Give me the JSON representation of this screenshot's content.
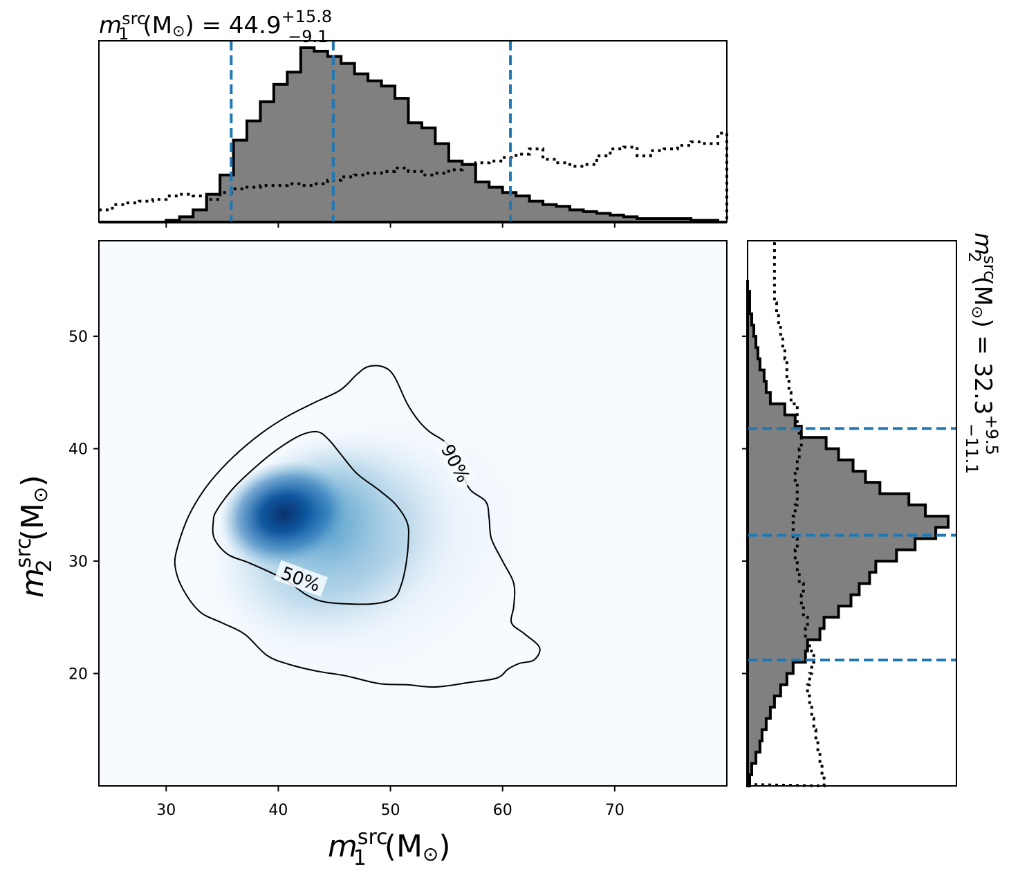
{
  "chart_data": [
    {
      "type": "heatmap",
      "panel": "joint",
      "xlabel": {
        "var": "m",
        "sub": "1",
        "sup": "src",
        "unit": "(M",
        "sun": "⊙",
        "close": ")"
      },
      "ylabel": {
        "var": "m",
        "sub": "2",
        "sup": "src",
        "unit": "(M",
        "sun": "⊙",
        "close": ")"
      },
      "xlim": [
        24,
        80
      ],
      "ylim": [
        10,
        58.5
      ],
      "x_ticks": [
        30,
        40,
        50,
        60,
        70
      ],
      "y_ticks": [
        20,
        30,
        40,
        50
      ],
      "colormap": "Blues",
      "peak": {
        "x": 40.5,
        "y": 34.0
      },
      "contours": [
        {
          "label": "50%",
          "label_at": [
            42,
            28.4
          ],
          "points": [
            [
              34.5,
              34.5
            ],
            [
              36,
              36.5
            ],
            [
              38,
              38.4
            ],
            [
              40,
              40
            ],
            [
              42,
              41.2
            ],
            [
              43.5,
              41.5
            ],
            [
              44.5,
              40.8
            ],
            [
              45.5,
              39.6
            ],
            [
              47,
              37.8
            ],
            [
              49,
              36.3
            ],
            [
              50.5,
              35
            ],
            [
              51.5,
              33.4
            ],
            [
              51.6,
              31.8
            ],
            [
              51.4,
              29.8
            ],
            [
              51,
              28
            ],
            [
              50.3,
              26.7
            ],
            [
              48.5,
              26.2
            ],
            [
              46,
              26.2
            ],
            [
              44,
              26.4
            ],
            [
              42.5,
              27
            ],
            [
              40.5,
              28.4
            ],
            [
              37.5,
              29.8
            ],
            [
              35.5,
              30.6
            ],
            [
              34.3,
              32
            ],
            [
              34.2,
              33.5
            ]
          ]
        },
        {
          "label": "90%",
          "label_at": [
            55.8,
            38.7
          ],
          "points": [
            [
              31,
              31.2
            ],
            [
              32,
              34
            ],
            [
              33.5,
              36.5
            ],
            [
              35.5,
              38.8
            ],
            [
              38,
              41
            ],
            [
              40.5,
              42.7
            ],
            [
              43,
              44
            ],
            [
              45.5,
              45.2
            ],
            [
              47,
              46.6
            ],
            [
              48,
              47.3
            ],
            [
              49.3,
              47.3
            ],
            [
              50.3,
              46.5
            ],
            [
              51.5,
              44
            ],
            [
              52.5,
              42.5
            ],
            [
              53.5,
              41.5
            ],
            [
              55,
              40.5
            ],
            [
              56,
              39
            ],
            [
              57,
              36.5
            ],
            [
              58.5,
              35.3
            ],
            [
              58.8,
              33.8
            ],
            [
              59,
              32
            ],
            [
              60,
              30
            ],
            [
              61,
              28
            ],
            [
              61,
              26
            ],
            [
              60.8,
              24.5
            ],
            [
              62,
              23.5
            ],
            [
              63.3,
              22.3
            ],
            [
              62.8,
              21.2
            ],
            [
              61.5,
              20.9
            ],
            [
              60.5,
              20.4
            ],
            [
              59.5,
              19.6
            ],
            [
              57,
              19.2
            ],
            [
              54,
              18.8
            ],
            [
              51.5,
              19
            ],
            [
              49,
              19.1
            ],
            [
              46,
              19.8
            ],
            [
              43.5,
              20.2
            ],
            [
              41,
              20.8
            ],
            [
              39,
              21.6
            ],
            [
              37,
              23.5
            ],
            [
              35,
              24.5
            ],
            [
              33,
              25.5
            ],
            [
              31.5,
              27.5
            ],
            [
              30.8,
              29.5
            ]
          ]
        }
      ]
    },
    {
      "type": "histogram",
      "panel": "top-marginal",
      "title": {
        "var": "m",
        "sub": "1",
        "sup": "src",
        "unit": "(M",
        "sun": "⊙",
        "close": ") = 44.9",
        "plus": "+15.8",
        "minus": "−9.1"
      },
      "xlim": [
        24,
        80
      ],
      "bin_edges": [
        24,
        25.2,
        26.4,
        27.6,
        28.8,
        30,
        31.2,
        32.4,
        33.6,
        34.8,
        36,
        37.2,
        38.4,
        39.6,
        40.8,
        42,
        43.2,
        44.4,
        45.6,
        46.8,
        48,
        49.2,
        50.4,
        51.6,
        52.8,
        54,
        55.2,
        56.4,
        57.6,
        58.8,
        60,
        61.2,
        62.4,
        63.6,
        64.8,
        66,
        67.2,
        68.4,
        69.6,
        70.8,
        72,
        73.2,
        74.4,
        75.6,
        76.8,
        78,
        79.2,
        80
      ],
      "posterior_counts": [
        0,
        0,
        0,
        0,
        0,
        0.01,
        0.03,
        0.07,
        0.16,
        0.27,
        0.47,
        0.58,
        0.69,
        0.79,
        0.86,
        1.0,
        0.98,
        0.95,
        0.91,
        0.85,
        0.81,
        0.78,
        0.71,
        0.57,
        0.54,
        0.45,
        0.35,
        0.33,
        0.23,
        0.2,
        0.17,
        0.15,
        0.12,
        0.1,
        0.09,
        0.07,
        0.06,
        0.05,
        0.04,
        0.03,
        0.02,
        0.02,
        0.02,
        0.02,
        0.01,
        0.01,
        0.0
      ],
      "prior_counts": [
        0.07,
        0.1,
        0.11,
        0.12,
        0.13,
        0.15,
        0.16,
        0.15,
        0.13,
        0.17,
        0.19,
        0.2,
        0.21,
        0.21,
        0.22,
        0.21,
        0.22,
        0.24,
        0.26,
        0.27,
        0.28,
        0.29,
        0.31,
        0.29,
        0.27,
        0.28,
        0.3,
        0.33,
        0.34,
        0.35,
        0.37,
        0.39,
        0.42,
        0.36,
        0.34,
        0.32,
        0.33,
        0.38,
        0.42,
        0.43,
        0.38,
        0.41,
        0.42,
        0.44,
        0.46,
        0.45,
        0.51
      ],
      "quantile_lines": [
        35.8,
        44.9,
        60.7
      ]
    },
    {
      "type": "histogram",
      "panel": "right-marginal",
      "orientation": "horizontal",
      "title": {
        "var": "m",
        "sub": "2",
        "sup": "src",
        "unit": "(M",
        "sun": "⊙",
        "close": ") = 32.3",
        "plus": "+9.5",
        "minus": "−11.1"
      },
      "ylim": [
        10,
        58.5
      ],
      "bin_edges": [
        10,
        11,
        12,
        13,
        14,
        15,
        16,
        17,
        18,
        19,
        20,
        21,
        22,
        23,
        24,
        25,
        26,
        27,
        28,
        29,
        30,
        31,
        32,
        33,
        34,
        35,
        36,
        37,
        38,
        39,
        40,
        41,
        42,
        43,
        44,
        45,
        46,
        47,
        48,
        49,
        50,
        51,
        52,
        53,
        54,
        55
      ],
      "posterior_counts": [
        0.01,
        0.02,
        0.04,
        0.06,
        0.07,
        0.09,
        0.11,
        0.13,
        0.16,
        0.19,
        0.22,
        0.28,
        0.29,
        0.35,
        0.37,
        0.44,
        0.5,
        0.54,
        0.59,
        0.62,
        0.72,
        0.81,
        0.91,
        0.97,
        0.86,
        0.78,
        0.64,
        0.57,
        0.51,
        0.44,
        0.38,
        0.26,
        0.23,
        0.18,
        0.11,
        0.09,
        0.08,
        0.06,
        0.05,
        0.04,
        0.03,
        0.02,
        0.01,
        0.01,
        0.0
      ],
      "prior_counts": [
        0.37,
        0.36,
        0.35,
        0.34,
        0.33,
        0.32,
        0.31,
        0.3,
        0.29,
        0.3,
        0.31,
        0.32,
        0.3,
        0.28,
        0.29,
        0.27,
        0.26,
        0.27,
        0.25,
        0.24,
        0.23,
        0.24,
        0.22,
        0.22,
        0.23,
        0.24,
        0.24,
        0.23,
        0.24,
        0.25,
        0.26,
        0.25,
        0.24,
        0.24,
        0.21,
        0.2,
        0.19,
        0.19,
        0.18,
        0.17,
        0.16,
        0.15,
        0.14,
        0.13,
        0.13
      ],
      "quantile_lines": [
        21.2,
        32.3,
        41.8
      ]
    }
  ],
  "colors": {
    "posterior_fill": "#808080",
    "posterior_edge": "#000000",
    "quantile_line": "#1f77b4",
    "contour": "#000000"
  }
}
